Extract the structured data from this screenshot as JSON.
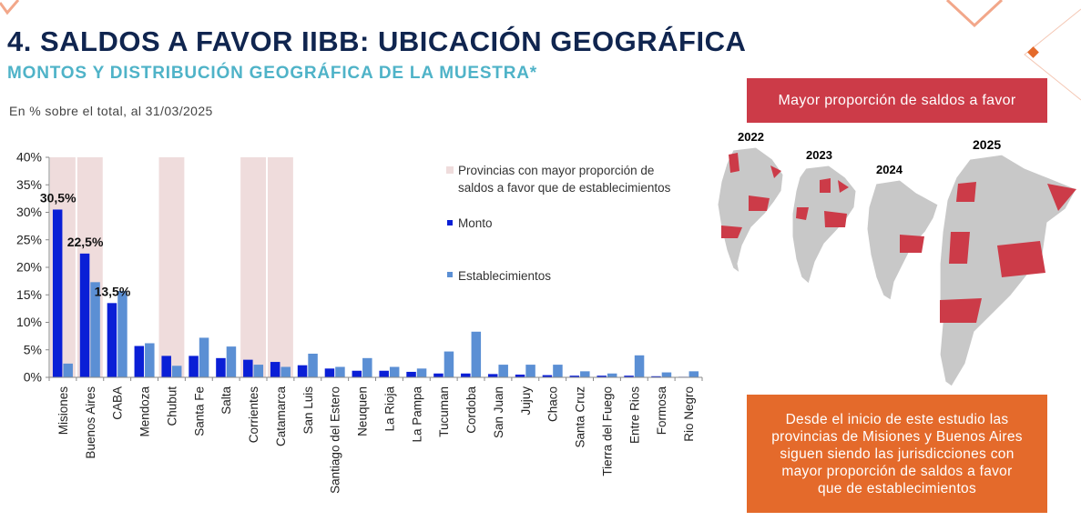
{
  "header": {
    "title": "4. SALDOS A FAVOR IIBB: UBICACIÓN GEOGRÁFICA",
    "subtitle": "MONTOS Y DISTRIBUCIÓN GEOGRÁFICA DE LA MUESTRA*",
    "note": "En % sobre el total, al 31/03/2025"
  },
  "colors": {
    "title": "#10254f",
    "subtitle": "#4fb3c8",
    "monto": "#0a1fd6",
    "establecimientos": "#5b8fd4",
    "highlight": "#efdcdc",
    "map_highlight": "#cc3b48",
    "map_base": "#c8c8c8",
    "badge_top": "#cc3b48",
    "badge_bottom": "#e46a2b",
    "deco": "#f2a78a"
  },
  "chart_data": {
    "type": "bar",
    "categories": [
      "Misiones",
      "Buenos Aires",
      "CABA",
      "Mendoza",
      "Chubut",
      "Santa Fe",
      "Salta",
      "Corrientes",
      "Catamarca",
      "San Luis",
      "Santiago del Estero",
      "Neuquen",
      "La Rioja",
      "La Pampa",
      "Tucuman",
      "Cordoba",
      "San Juan",
      "Jujuy",
      "Chaco",
      "Santa Cruz",
      "Tierra del Fuego",
      "Entre Rios",
      "Formosa",
      "Rio Negro"
    ],
    "series": [
      {
        "name": "Monto",
        "values": [
          30.5,
          22.5,
          13.5,
          5.7,
          3.9,
          3.9,
          3.5,
          3.2,
          2.8,
          2.2,
          1.6,
          1.2,
          1.2,
          1.0,
          0.7,
          0.7,
          0.6,
          0.5,
          0.4,
          0.3,
          0.3,
          0.3,
          0.2,
          0.1
        ]
      },
      {
        "name": "Establecimientos",
        "values": [
          2.5,
          17.3,
          15.7,
          6.2,
          2.1,
          7.2,
          5.6,
          2.3,
          1.9,
          4.3,
          1.9,
          3.5,
          1.9,
          1.6,
          4.7,
          8.3,
          2.3,
          2.3,
          2.3,
          1.1,
          0.7,
          4.0,
          0.9,
          1.1
        ]
      }
    ],
    "highlighted_categories": [
      "Misiones",
      "Buenos Aires",
      "Chubut",
      "Corrientes",
      "Catamarca"
    ],
    "highlight_legend": "Provincias con mayor proporción de saldos a favor que de establecimientos",
    "data_labels": [
      {
        "category": "Misiones",
        "text": "30,5%"
      },
      {
        "category": "Buenos Aires",
        "text": "22,5%"
      },
      {
        "category": "CABA",
        "text": "13,5%"
      }
    ],
    "yticks": [
      "0%",
      "5%",
      "10%",
      "15%",
      "20%",
      "25%",
      "30%",
      "35%",
      "40%"
    ],
    "ylim": [
      0,
      40
    ],
    "legend_position": "right"
  },
  "maps": {
    "years": [
      "2022",
      "2023",
      "2024",
      "2025"
    ]
  },
  "badges": {
    "top": "Mayor proporción de saldos a favor",
    "bottom_lines": [
      "Desde el inicio de este estudio las",
      "provincias de Misiones y Buenos Aires",
      "siguen siendo las  jurisdicciones con",
      "mayor proporción de saldos a favor",
      "que de establecimientos"
    ]
  }
}
